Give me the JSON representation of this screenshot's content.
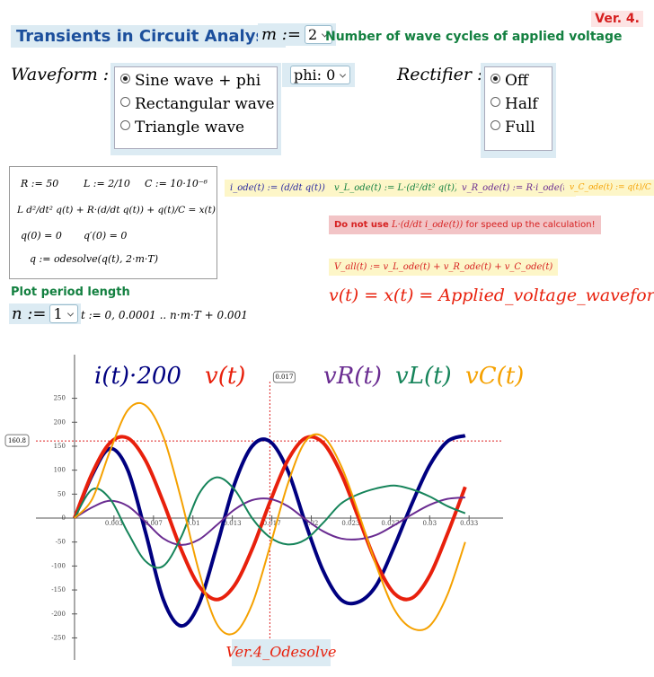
{
  "header": {
    "title": "Transients in Circuit Analysis",
    "version": "Ver. 4.",
    "m_label": "m :=",
    "m_value": "2",
    "m_desc": "Number of wave cycles of applied voltage"
  },
  "waveform": {
    "label": "Waveform :=",
    "options": [
      "Sine wave + phi",
      "Rectangular wave",
      "Triangle wave"
    ],
    "selected": 0
  },
  "phi": "phi: 0",
  "rectifier": {
    "label": "Rectifier :=",
    "options": [
      "Off",
      "Half",
      "Full"
    ],
    "selected": 0
  },
  "equations": [
    "R := 50",
    "L := 2/10",
    "C := 10·10⁻⁶",
    "L d²/dt² q(t) + R·(d/dt q(t)) + q(t)/C = x(t)",
    "q(0) = 0",
    "q′(0) = 0",
    "q := odesolve(q(t), 2·m·T)"
  ],
  "definitions": [
    "i_ode(t) := (d/dt q(t))",
    "v_L_ode(t) := L·(d²/dt² q(t))",
    "v_R_ode(t) := R·i_ode(t)",
    "v_C_ode(t) := q(t)/C"
  ],
  "warning": {
    "bold": "Do not use",
    "expr": "L·(d/dt i_ode(t))",
    "text": "for speed up the calculation!"
  },
  "v_all": "V_all(t) := v_L_ode(t) + v_R_ode(t) + v_C_ode(t)",
  "applied": "v(t) = x(t) = Applied_voltage_waveform",
  "plot_period": {
    "title": "Plot period length",
    "n_label": "n :=",
    "n_value": "1",
    "t_def": "t := 0, 0.0001 .. n·m·T + 0.001"
  },
  "chart_data": {
    "type": "line",
    "caption": "Ver.4_Odesolve",
    "x": [
      0,
      0.0015,
      0.003,
      0.0045,
      0.006,
      0.0075,
      0.009,
      0.0105,
      0.012,
      0.0135,
      0.015,
      0.0165,
      0.018,
      0.0195,
      0.021,
      0.0225,
      0.024,
      0.0255,
      0.027,
      0.0285,
      0.03,
      0.0315,
      0.033
    ],
    "series": [
      {
        "name": "i(t)·200",
        "color": "#000080",
        "width": 4,
        "values": [
          0,
          90,
          145,
          100,
          -30,
          -170,
          -225,
          -180,
          -60,
          70,
          150,
          160,
          100,
          -10,
          -110,
          -170,
          -175,
          -140,
          -60,
          30,
          110,
          160,
          172
        ]
      },
      {
        "name": "v(t)",
        "color": "#e8200c",
        "width": 4,
        "values": [
          0,
          94,
          157,
          167,
          120,
          33,
          -65,
          -141,
          -170,
          -141,
          -65,
          33,
          120,
          167,
          157,
          94,
          0,
          -94,
          -157,
          -167,
          -120,
          -33,
          65
        ]
      },
      {
        "name": "vR(t)",
        "color": "#6a2c91",
        "width": 2,
        "values": [
          0,
          22.5,
          36,
          25,
          -7.5,
          -42.5,
          -56,
          -45,
          -15,
          17.5,
          37.5,
          40,
          25,
          -2.5,
          -27.5,
          -42.5,
          -44,
          -35,
          -15,
          7.5,
          27.5,
          40,
          43
        ]
      },
      {
        "name": "vL(t)",
        "color": "#16845a",
        "width": 2,
        "values": [
          0,
          60,
          40,
          -30,
          -90,
          -100,
          -40,
          50,
          85,
          60,
          0,
          -40,
          -55,
          -45,
          -10,
          30,
          50,
          62,
          68,
          60,
          45,
          25,
          10
        ]
      },
      {
        "name": "vC(t)",
        "color": "#f5a100",
        "width": 2,
        "values": [
          0,
          40,
          140,
          225,
          235,
          170,
          40,
          -110,
          -220,
          -240,
          -180,
          -60,
          70,
          160,
          170,
          110,
          10,
          -100,
          -190,
          -230,
          -225,
          -160,
          -50
        ]
      }
    ],
    "xlim": [
      -0.00326,
      0.0362
    ],
    "ylim": [
      -296,
      341
    ],
    "xticks": [
      {
        "value": 0.00333,
        "label": "0.003"
      },
      {
        "value": 0.00667,
        "label": "0.007"
      },
      0.01,
      {
        "value": 0.01333,
        "label": "0.013"
      },
      {
        "value": 0.01667,
        "label": "0.017"
      },
      0.02,
      {
        "value": 0.02333,
        "label": "0.023"
      },
      {
        "value": 0.02667,
        "label": "0.027"
      },
      0.03,
      {
        "value": 0.03333,
        "label": "0.033"
      }
    ],
    "yticks": [
      -250,
      -200,
      -150,
      -100,
      -50,
      0,
      50,
      100,
      150,
      200,
      250
    ],
    "marker_x": {
      "value": 0.0165,
      "label": "0.017"
    },
    "marker_y": 160.8
  }
}
